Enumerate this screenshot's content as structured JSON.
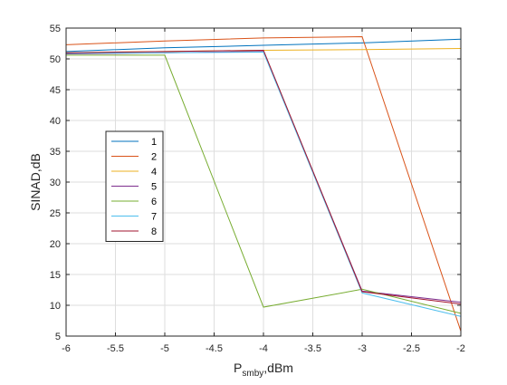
{
  "chart_data": {
    "type": "line",
    "title": "",
    "xlabel": {
      "main": "P",
      "subscript": "smby",
      "suffix": ",dBm"
    },
    "ylabel": "SINAD,dB",
    "xlim": [
      -6,
      -2
    ],
    "ylim": [
      5,
      55
    ],
    "xticks": [
      "-6",
      "-5.5",
      "-5",
      "-4.5",
      "-4",
      "-3.5",
      "-3",
      "-2.5",
      "-2"
    ],
    "yticks": [
      "5",
      "10",
      "15",
      "20",
      "25",
      "30",
      "35",
      "40",
      "45",
      "50",
      "55"
    ],
    "grid": true,
    "legend_position": "middle-left",
    "x": [
      -6,
      -5,
      -4,
      -3,
      -2
    ],
    "series": [
      {
        "name": "1",
        "color": "#0072BD",
        "values": [
          51.2,
          51.8,
          52.2,
          52.6,
          53.2
        ]
      },
      {
        "name": "2",
        "color": "#D95319",
        "values": [
          52.3,
          52.9,
          53.4,
          53.6,
          5.8
        ]
      },
      {
        "name": "4",
        "color": "#EDB120",
        "values": [
          51.0,
          51.2,
          51.4,
          51.5,
          51.7
        ]
      },
      {
        "name": "5",
        "color": "#7E2F8E",
        "values": [
          50.8,
          51.0,
          51.2,
          12.3,
          10.5
        ]
      },
      {
        "name": "6",
        "color": "#77AC30",
        "values": [
          50.6,
          50.6,
          9.7,
          12.6,
          8.7
        ]
      },
      {
        "name": "7",
        "color": "#4DBEEE",
        "values": [
          50.9,
          51.0,
          51.1,
          12.0,
          8.2
        ]
      },
      {
        "name": "8",
        "color": "#A2142F",
        "values": [
          51.0,
          51.2,
          51.4,
          12.2,
          10.2
        ]
      }
    ]
  }
}
